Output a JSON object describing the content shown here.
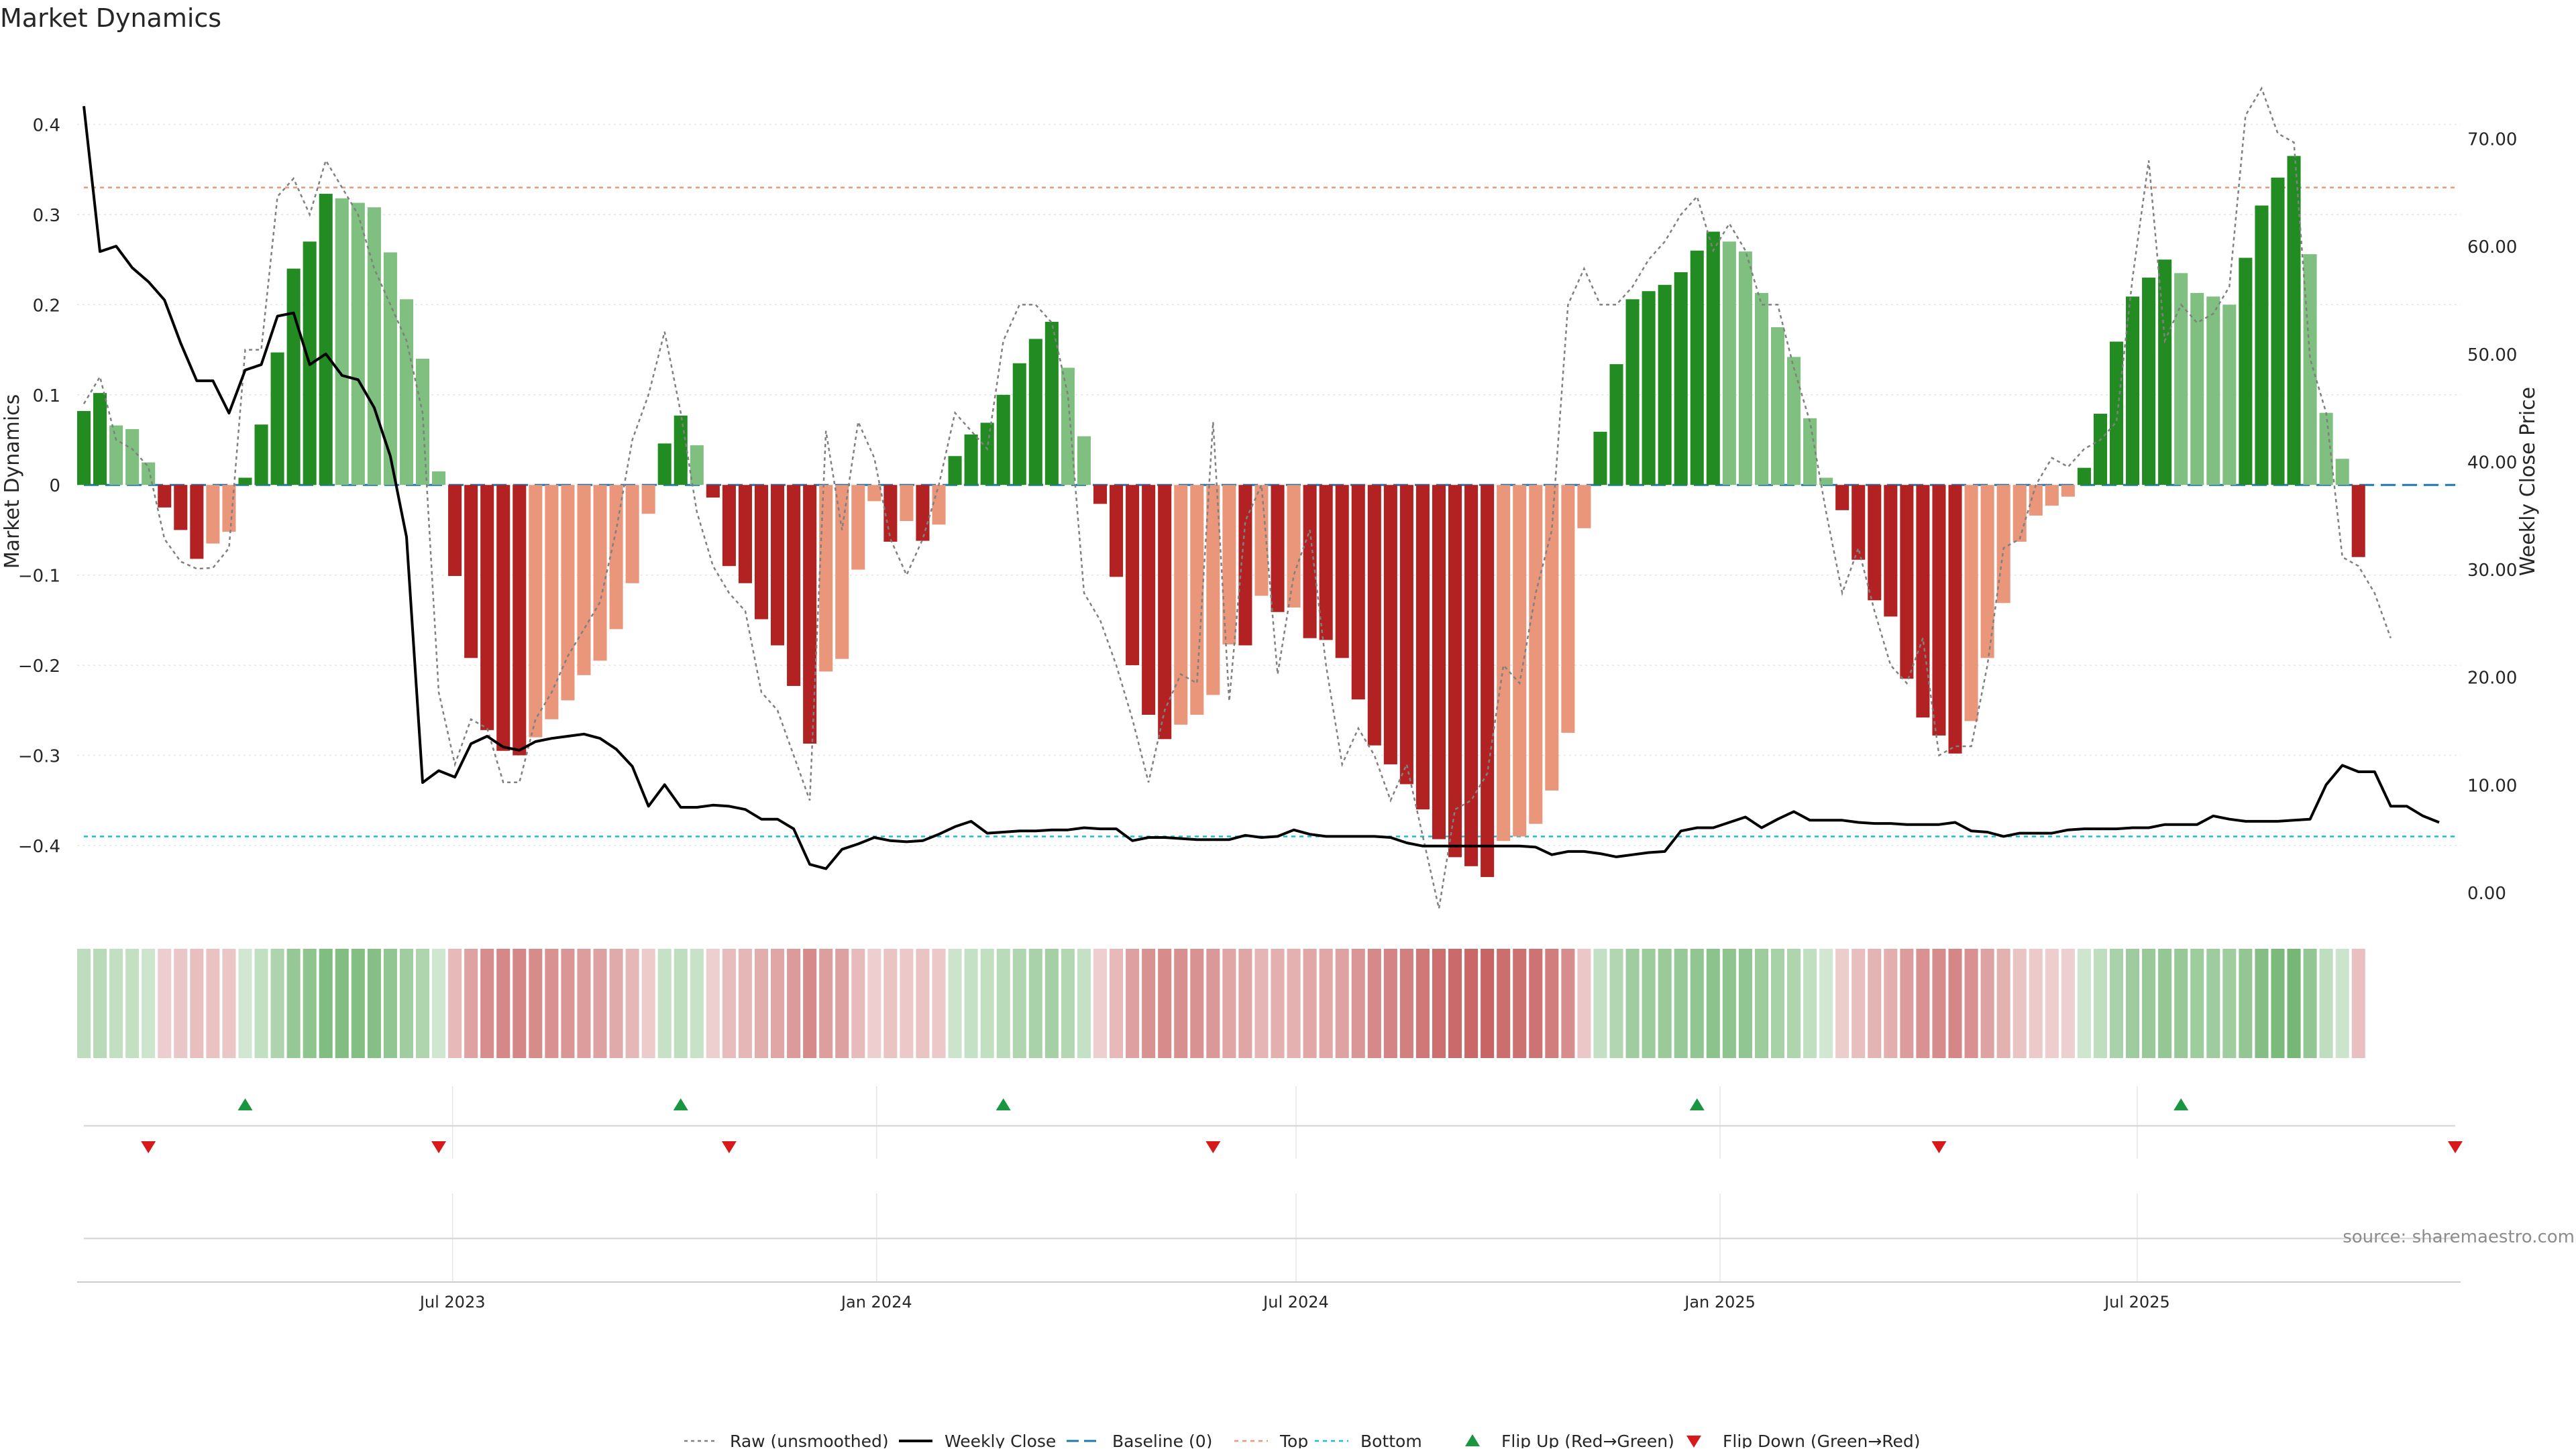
{
  "chart_data": {
    "type": "bar",
    "title": "Market Dynamics",
    "ylabel": "Market Dynamics",
    "y2label": "Weekly Close Price",
    "ylim": [
      -0.47,
      0.48
    ],
    "y2lim": [
      -1.5,
      78
    ],
    "yticks": [
      {
        "value": 0.4,
        "label": "0.4"
      },
      {
        "value": 0.3,
        "label": "0.3"
      },
      {
        "value": 0.2,
        "label": "0.2"
      },
      {
        "value": 0.1,
        "label": "0.1"
      },
      {
        "value": 0,
        "label": "0"
      },
      {
        "value": -0.1,
        "label": "−0.1"
      },
      {
        "value": -0.2,
        "label": "−0.2"
      },
      {
        "value": -0.3,
        "label": "−0.3"
      },
      {
        "value": -0.4,
        "label": "−0.4"
      }
    ],
    "y2ticks": [
      {
        "value": 70,
        "label": "70.00"
      },
      {
        "value": 60,
        "label": "60.00"
      },
      {
        "value": 50,
        "label": "50.00"
      },
      {
        "value": 40,
        "label": "40.00"
      },
      {
        "value": 30,
        "label": "30.00"
      },
      {
        "value": 20,
        "label": "20.00"
      },
      {
        "value": 10,
        "label": "10.00"
      },
      {
        "value": 0,
        "label": "0.00"
      }
    ],
    "x_start": "2023-01-22",
    "x_end": "2025-11-16",
    "xticks": [
      {
        "date": "2023-07-01",
        "label": "Jul 2023"
      },
      {
        "date": "2024-01-01",
        "label": "Jan 2024"
      },
      {
        "date": "2024-07-01",
        "label": "Jul 2024"
      },
      {
        "date": "2025-01-01",
        "label": "Jan 2025"
      },
      {
        "date": "2025-07-01",
        "label": "Jul 2025"
      }
    ],
    "first_bar_date": "2023-01-22",
    "bar_interval_days": 7,
    "bar_values": [
      0.082,
      0.102,
      0.066,
      0.062,
      0.025,
      -0.025,
      -0.05,
      -0.082,
      -0.065,
      -0.052,
      0.008,
      0.067,
      0.147,
      0.24,
      0.27,
      0.323,
      0.318,
      0.313,
      0.308,
      0.258,
      0.206,
      0.14,
      0.015,
      -0.101,
      -0.192,
      -0.272,
      -0.295,
      -0.3,
      -0.28,
      -0.26,
      -0.239,
      -0.211,
      -0.195,
      -0.16,
      -0.109,
      -0.032,
      0.046,
      0.077,
      0.044,
      -0.014,
      -0.09,
      -0.109,
      -0.149,
      -0.178,
      -0.223,
      -0.287,
      -0.207,
      -0.193,
      -0.094,
      -0.018,
      -0.063,
      -0.04,
      -0.062,
      -0.044,
      0.032,
      0.056,
      0.069,
      0.1,
      0.135,
      0.162,
      0.181,
      0.13,
      0.054,
      -0.021,
      -0.102,
      -0.2,
      -0.255,
      -0.282,
      -0.266,
      -0.255,
      -0.233,
      -0.177,
      -0.178,
      -0.123,
      -0.141,
      -0.136,
      -0.17,
      -0.172,
      -0.192,
      -0.238,
      -0.289,
      -0.31,
      -0.332,
      -0.36,
      -0.393,
      -0.413,
      -0.423,
      -0.435,
      -0.395,
      -0.39,
      -0.376,
      -0.339,
      -0.275,
      -0.048,
      0.059,
      0.134,
      0.206,
      0.215,
      0.222,
      0.236,
      0.26,
      0.281,
      0.27,
      0.259,
      0.213,
      0.175,
      0.142,
      0.074,
      0.008,
      -0.028,
      -0.083,
      -0.128,
      -0.146,
      -0.215,
      -0.258,
      -0.278,
      -0.298,
      -0.262,
      -0.192,
      -0.131,
      -0.063,
      -0.034,
      -0.023,
      -0.013,
      0.019,
      0.079,
      0.159,
      0.209,
      0.23,
      0.25,
      0.235,
      0.213,
      0.209,
      0.2,
      0.252,
      0.31,
      0.341,
      0.365,
      0.256,
      0.08,
      0.029,
      -0.08
    ],
    "raw_values": [
      0.09,
      0.12,
      0.05,
      0.04,
      0.02,
      -0.06,
      -0.085,
      -0.093,
      -0.092,
      -0.07,
      0.15,
      0.15,
      0.32,
      0.34,
      0.3,
      0.36,
      0.33,
      0.3,
      0.24,
      0.2,
      0.16,
      0.08,
      -0.23,
      -0.31,
      -0.26,
      -0.27,
      -0.33,
      -0.33,
      -0.26,
      -0.23,
      -0.19,
      -0.16,
      -0.13,
      -0.05,
      0.05,
      0.1,
      0.17,
      0.08,
      -0.03,
      -0.09,
      -0.12,
      -0.14,
      -0.23,
      -0.25,
      -0.3,
      -0.35,
      0.06,
      -0.05,
      0.07,
      0.03,
      -0.06,
      -0.1,
      -0.06,
      0.0,
      0.08,
      0.06,
      0.04,
      0.16,
      0.2,
      0.2,
      0.18,
      0.1,
      -0.12,
      -0.15,
      -0.2,
      -0.26,
      -0.33,
      -0.25,
      -0.21,
      -0.22,
      0.07,
      -0.24,
      -0.04,
      0.0,
      -0.21,
      -0.1,
      -0.05,
      -0.2,
      -0.31,
      -0.27,
      -0.3,
      -0.35,
      -0.31,
      -0.39,
      -0.47,
      -0.36,
      -0.35,
      -0.32,
      -0.2,
      -0.22,
      -0.12,
      -0.05,
      0.2,
      0.24,
      0.2,
      0.2,
      0.22,
      0.25,
      0.27,
      0.3,
      0.32,
      0.26,
      0.29,
      0.26,
      0.2,
      0.2,
      0.13,
      0.07,
      -0.03,
      -0.12,
      -0.07,
      -0.14,
      -0.2,
      -0.22,
      -0.17,
      -0.3,
      -0.29,
      -0.29,
      -0.2,
      -0.07,
      -0.06,
      0.0,
      0.03,
      0.02,
      0.04,
      0.05,
      0.07,
      0.23,
      0.36,
      0.16,
      0.2,
      0.18,
      0.19,
      0.22,
      0.41,
      0.44,
      0.39,
      0.38,
      0.14,
      0.08,
      -0.08,
      -0.09,
      -0.12,
      -0.17
    ],
    "weekly_close": [
      73,
      59.5,
      60,
      58,
      56.7,
      55,
      51,
      47.5,
      47.5,
      44.5,
      48.5,
      49,
      53.5,
      53.8,
      49,
      50,
      48,
      47.6,
      45,
      40.5,
      33,
      10.2,
      11.3,
      10.7,
      13.8,
      14.5,
      13.5,
      13.2,
      14,
      14.3,
      14.5,
      14.7,
      14.3,
      13.3,
      11.7,
      8,
      10,
      7.9,
      7.9,
      8.1,
      8,
      7.7,
      6.8,
      6.8,
      5.9,
      2.6,
      2.2,
      4,
      4.5,
      5.1,
      4.8,
      4.7,
      4.8,
      5.4,
      6.1,
      6.6,
      5.5,
      5.6,
      5.7,
      5.7,
      5.8,
      5.8,
      6,
      5.9,
      5.9,
      4.8,
      5.1,
      5.1,
      5,
      4.9,
      4.9,
      4.9,
      5.3,
      5.1,
      5.2,
      5.8,
      5.4,
      5.2,
      5.2,
      5.2,
      5.2,
      5.1,
      4.6,
      4.3,
      4.3,
      4.3,
      4.3,
      4.3,
      4.3,
      4.3,
      4.2,
      3.5,
      3.8,
      3.8,
      3.6,
      3.3,
      3.5,
      3.7,
      3.8,
      5.7,
      6,
      6,
      6.5,
      7,
      6,
      6.8,
      7.5,
      6.7,
      6.7,
      6.7,
      6.5,
      6.4,
      6.4,
      6.3,
      6.3,
      6.3,
      6.5,
      5.7,
      5.6,
      5.2,
      5.5,
      5.5,
      5.5,
      5.8,
      5.9,
      5.9,
      5.9,
      6,
      6,
      6.3,
      6.3,
      6.3,
      7.1,
      6.8,
      6.6,
      6.6,
      6.6,
      6.7,
      6.8,
      10,
      11.8,
      11.2,
      11.2,
      8,
      8,
      7.1,
      6.5
    ],
    "baseline": 0,
    "top": 0.33,
    "bottom": -0.39,
    "flip_up_dates": [
      "2023-04-02",
      "2023-10-08",
      "2024-02-25",
      "2024-12-22",
      "2025-07-20"
    ],
    "flip_down_dates": [
      "2023-02-19",
      "2023-06-25",
      "2023-10-29",
      "2024-05-26",
      "2025-04-06",
      "2025-11-16"
    ],
    "legend": {
      "placement": "bottom-center",
      "items": [
        {
          "label": "Raw (unsmoothed)",
          "style": "raw"
        },
        {
          "label": "Weekly Close",
          "style": "close"
        },
        {
          "label": "Baseline (0)",
          "style": "baseline"
        },
        {
          "label": "Top",
          "style": "top"
        },
        {
          "label": "Bottom",
          "style": "bottom"
        },
        {
          "label": "Flip Up (Red→Green)",
          "style": "flipup"
        },
        {
          "label": "Flip Down (Green→Red)",
          "style": "flipdown"
        }
      ]
    },
    "source_label": "source: sharemaestro.com",
    "colors": {
      "up_strong": "#228b22",
      "up_weak": "#7fbf7f",
      "down_strong": "#b22222",
      "down_weak": "#e9967a",
      "close_line": "#000000",
      "raw_line": "#808080",
      "baseline": "#1f77b4",
      "top_line": "#e9967a",
      "bottom_line": "#17becf",
      "flip_up": "#1a9641",
      "flip_down": "#d7191c",
      "strip_green": "#228b22",
      "strip_red": "#b22222",
      "grid": "#e6e6e6",
      "text": "#262626"
    }
  }
}
